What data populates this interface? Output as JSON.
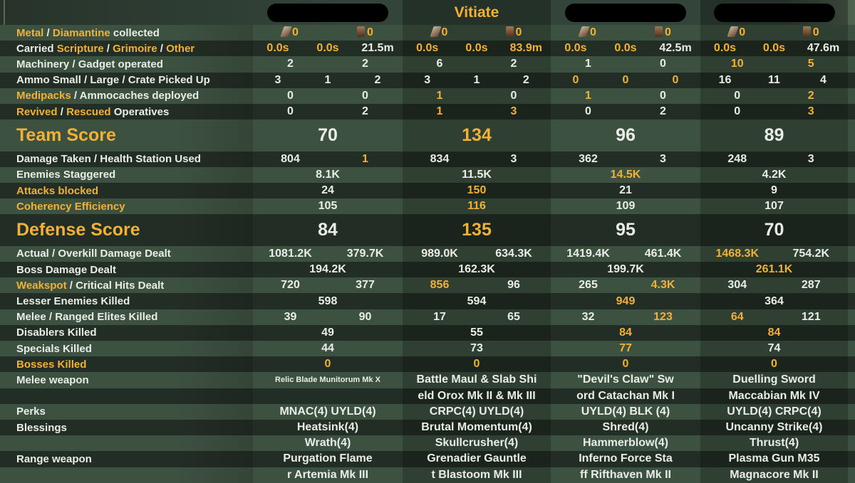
{
  "header": {
    "players": [
      "",
      "Vitiate",
      "",
      ""
    ],
    "redacted": [
      true,
      false,
      true,
      true
    ]
  },
  "colors": {
    "highlight": "#f2b136",
    "text": "#e9ede6",
    "row_light": "#3d5141",
    "row_dark": "#222d25"
  },
  "rows": [
    {
      "label": [
        {
          "t": "Metal",
          "h": 1
        },
        {
          "t": " / ",
          "h": 0
        },
        {
          "t": "Diamantine",
          "h": 1
        },
        {
          "t": " collected",
          "h": 0
        }
      ],
      "cells": [
        [
          {
            "t": "0",
            "h": 1,
            "icon": "metal"
          },
          {
            "t": "0",
            "h": 1,
            "icon": "diamantine"
          }
        ],
        [
          {
            "t": "0",
            "h": 1,
            "icon": "metal"
          },
          {
            "t": "0",
            "h": 1,
            "icon": "diamantine"
          }
        ],
        [
          {
            "t": "0",
            "h": 1,
            "icon": "metal"
          },
          {
            "t": "0",
            "h": 1,
            "icon": "diamantine"
          }
        ],
        [
          {
            "t": "0",
            "h": 1,
            "icon": "metal"
          },
          {
            "t": "0",
            "h": 1,
            "icon": "diamantine"
          }
        ]
      ]
    },
    {
      "label": [
        {
          "t": "Carried ",
          "h": 0
        },
        {
          "t": "Scripture",
          "h": 1
        },
        {
          "t": " / ",
          "h": 0
        },
        {
          "t": "Grimoire",
          "h": 1
        },
        {
          "t": " / ",
          "h": 0
        },
        {
          "t": "Other",
          "h": 1
        }
      ],
      "cells": [
        [
          {
            "t": "0.0s",
            "h": 1
          },
          {
            "t": "0.0s",
            "h": 1
          },
          {
            "t": "21.5m",
            "h": 0
          }
        ],
        [
          {
            "t": "0.0s",
            "h": 1
          },
          {
            "t": "0.0s",
            "h": 1
          },
          {
            "t": "83.9m",
            "h": 1
          }
        ],
        [
          {
            "t": "0.0s",
            "h": 1
          },
          {
            "t": "0.0s",
            "h": 1
          },
          {
            "t": "42.5m",
            "h": 0
          }
        ],
        [
          {
            "t": "0.0s",
            "h": 1
          },
          {
            "t": "0.0s",
            "h": 1
          },
          {
            "t": "47.6m",
            "h": 0
          }
        ]
      ]
    },
    {
      "label": [
        {
          "t": "Machinery / Gadget operated",
          "h": 0
        }
      ],
      "cells": [
        [
          {
            "t": "2",
            "h": 0
          },
          {
            "t": "2",
            "h": 0
          }
        ],
        [
          {
            "t": "6",
            "h": 0
          },
          {
            "t": "2",
            "h": 0
          }
        ],
        [
          {
            "t": "1",
            "h": 0
          },
          {
            "t": "0",
            "h": 0
          }
        ],
        [
          {
            "t": "10",
            "h": 1
          },
          {
            "t": "5",
            "h": 1
          }
        ]
      ]
    },
    {
      "label": [
        {
          "t": "Ammo Small / Large / Crate Picked Up",
          "h": 0
        }
      ],
      "cells": [
        [
          {
            "t": "3",
            "h": 0
          },
          {
            "t": "1",
            "h": 0
          },
          {
            "t": "2",
            "h": 0
          }
        ],
        [
          {
            "t": "3",
            "h": 0
          },
          {
            "t": "1",
            "h": 0
          },
          {
            "t": "2",
            "h": 0
          }
        ],
        [
          {
            "t": "0",
            "h": 1
          },
          {
            "t": "0",
            "h": 1
          },
          {
            "t": "0",
            "h": 1
          }
        ],
        [
          {
            "t": "16",
            "h": 0
          },
          {
            "t": "11",
            "h": 0
          },
          {
            "t": "4",
            "h": 0
          }
        ]
      ]
    },
    {
      "label": [
        {
          "t": "Medipacks",
          "h": 1
        },
        {
          "t": " / Ammocaches deployed",
          "h": 0
        }
      ],
      "cells": [
        [
          {
            "t": "0",
            "h": 0
          },
          {
            "t": "0",
            "h": 0
          }
        ],
        [
          {
            "t": "1",
            "h": 1
          },
          {
            "t": "0",
            "h": 0
          }
        ],
        [
          {
            "t": "1",
            "h": 1
          },
          {
            "t": "0",
            "h": 0
          }
        ],
        [
          {
            "t": "0",
            "h": 0
          },
          {
            "t": "2",
            "h": 1
          }
        ]
      ]
    },
    {
      "label": [
        {
          "t": "Revived",
          "h": 1
        },
        {
          "t": " / ",
          "h": 0
        },
        {
          "t": "Rescued",
          "h": 1
        },
        {
          "t": " Operatives",
          "h": 0
        }
      ],
      "cells": [
        [
          {
            "t": "0",
            "h": 0
          },
          {
            "t": "2",
            "h": 0
          }
        ],
        [
          {
            "t": "1",
            "h": 1
          },
          {
            "t": "3",
            "h": 1
          }
        ],
        [
          {
            "t": "0",
            "h": 0
          },
          {
            "t": "2",
            "h": 0
          }
        ],
        [
          {
            "t": "0",
            "h": 0
          },
          {
            "t": "3",
            "h": 1
          }
        ]
      ]
    },
    {
      "score": true,
      "label": [
        {
          "t": "Team Score",
          "h": 1
        }
      ],
      "cells": [
        [
          {
            "t": "70",
            "h": 0
          }
        ],
        [
          {
            "t": "134",
            "h": 1
          }
        ],
        [
          {
            "t": "96",
            "h": 0
          }
        ],
        [
          {
            "t": "89",
            "h": 0
          }
        ]
      ]
    },
    {
      "label": [
        {
          "t": "Damage Taken / Health Station Used",
          "h": 0
        }
      ],
      "cells": [
        [
          {
            "t": "804",
            "h": 0
          },
          {
            "t": "1",
            "h": 1
          }
        ],
        [
          {
            "t": "834",
            "h": 0
          },
          {
            "t": "3",
            "h": 0
          }
        ],
        [
          {
            "t": "362",
            "h": 0
          },
          {
            "t": "3",
            "h": 0
          }
        ],
        [
          {
            "t": "248",
            "h": 0
          },
          {
            "t": "3",
            "h": 0
          }
        ]
      ]
    },
    {
      "label": [
        {
          "t": "Enemies Staggered",
          "h": 0
        }
      ],
      "cells": [
        [
          {
            "t": "8.1K",
            "h": 0
          }
        ],
        [
          {
            "t": "11.5K",
            "h": 0
          }
        ],
        [
          {
            "t": "14.5K",
            "h": 1
          }
        ],
        [
          {
            "t": "4.2K",
            "h": 0
          }
        ]
      ]
    },
    {
      "label": [
        {
          "t": "Attacks blocked",
          "h": 1
        }
      ],
      "cells": [
        [
          {
            "t": "24",
            "h": 0
          }
        ],
        [
          {
            "t": "150",
            "h": 1
          }
        ],
        [
          {
            "t": "21",
            "h": 0
          }
        ],
        [
          {
            "t": "9",
            "h": 0
          }
        ]
      ]
    },
    {
      "label": [
        {
          "t": "Coherency Efficiency",
          "h": 1
        }
      ],
      "cells": [
        [
          {
            "t": "105",
            "h": 0
          }
        ],
        [
          {
            "t": "116",
            "h": 1
          }
        ],
        [
          {
            "t": "109",
            "h": 0
          }
        ],
        [
          {
            "t": "107",
            "h": 0
          }
        ]
      ]
    },
    {
      "score": true,
      "label": [
        {
          "t": "Defense Score",
          "h": 1
        }
      ],
      "cells": [
        [
          {
            "t": "84",
            "h": 0
          }
        ],
        [
          {
            "t": "135",
            "h": 1
          }
        ],
        [
          {
            "t": "95",
            "h": 0
          }
        ],
        [
          {
            "t": "70",
            "h": 0
          }
        ]
      ]
    },
    {
      "label": [
        {
          "t": "Actual / Overkill Damage Dealt",
          "h": 0
        }
      ],
      "cells": [
        [
          {
            "t": "1081.2K",
            "h": 0
          },
          {
            "t": "379.7K",
            "h": 0
          }
        ],
        [
          {
            "t": "989.0K",
            "h": 0
          },
          {
            "t": "634.3K",
            "h": 0
          }
        ],
        [
          {
            "t": "1419.4K",
            "h": 0
          },
          {
            "t": "461.4K",
            "h": 0
          }
        ],
        [
          {
            "t": "1468.3K",
            "h": 1
          },
          {
            "t": "754.2K",
            "h": 0
          }
        ]
      ]
    },
    {
      "label": [
        {
          "t": "Boss Damage Dealt",
          "h": 0
        }
      ],
      "cells": [
        [
          {
            "t": "194.2K",
            "h": 0
          }
        ],
        [
          {
            "t": "162.3K",
            "h": 0
          }
        ],
        [
          {
            "t": "199.7K",
            "h": 0
          }
        ],
        [
          {
            "t": "261.1K",
            "h": 1
          }
        ]
      ]
    },
    {
      "label": [
        {
          "t": "Weakspot",
          "h": 1
        },
        {
          "t": " / Critical Hits Dealt",
          "h": 0
        }
      ],
      "cells": [
        [
          {
            "t": "720",
            "h": 0
          },
          {
            "t": "377",
            "h": 0
          }
        ],
        [
          {
            "t": "856",
            "h": 1
          },
          {
            "t": "96",
            "h": 0
          }
        ],
        [
          {
            "t": "265",
            "h": 0
          },
          {
            "t": "4.3K",
            "h": 1
          }
        ],
        [
          {
            "t": "304",
            "h": 0
          },
          {
            "t": "287",
            "h": 0
          }
        ]
      ]
    },
    {
      "label": [
        {
          "t": "Lesser Enemies Killed",
          "h": 0
        }
      ],
      "cells": [
        [
          {
            "t": "598",
            "h": 0
          }
        ],
        [
          {
            "t": "594",
            "h": 0
          }
        ],
        [
          {
            "t": "949",
            "h": 1
          }
        ],
        [
          {
            "t": "364",
            "h": 0
          }
        ]
      ]
    },
    {
      "label": [
        {
          "t": "Melee / Ranged Elites Killed",
          "h": 0
        }
      ],
      "cells": [
        [
          {
            "t": "39",
            "h": 0
          },
          {
            "t": "90",
            "h": 0
          }
        ],
        [
          {
            "t": "17",
            "h": 0
          },
          {
            "t": "65",
            "h": 0
          }
        ],
        [
          {
            "t": "32",
            "h": 0
          },
          {
            "t": "123",
            "h": 1
          }
        ],
        [
          {
            "t": "64",
            "h": 1
          },
          {
            "t": "121",
            "h": 0
          }
        ]
      ]
    },
    {
      "label": [
        {
          "t": "Disablers Killed",
          "h": 0
        }
      ],
      "cells": [
        [
          {
            "t": "49",
            "h": 0
          }
        ],
        [
          {
            "t": "55",
            "h": 0
          }
        ],
        [
          {
            "t": "84",
            "h": 1
          }
        ],
        [
          {
            "t": "84",
            "h": 1
          }
        ]
      ]
    },
    {
      "label": [
        {
          "t": "Specials Killed",
          "h": 0
        }
      ],
      "cells": [
        [
          {
            "t": "44",
            "h": 0
          }
        ],
        [
          {
            "t": "73",
            "h": 0
          }
        ],
        [
          {
            "t": "77",
            "h": 1
          }
        ],
        [
          {
            "t": "74",
            "h": 0
          }
        ]
      ]
    },
    {
      "label": [
        {
          "t": "Bosses Killed",
          "h": 1
        }
      ],
      "cells": [
        [
          {
            "t": "0",
            "h": 1
          }
        ],
        [
          {
            "t": "0",
            "h": 1
          }
        ],
        [
          {
            "t": "0",
            "h": 1
          }
        ],
        [
          {
            "t": "0",
            "h": 1
          }
        ]
      ]
    },
    {
      "label": [
        {
          "t": "Melee weapon",
          "h": 0
        }
      ],
      "cells": [
        [
          {
            "t": "Relic Blade Munitorum Mk X",
            "h": 0,
            "small": true
          }
        ],
        [
          {
            "t": "Battle Maul & Slab Shi",
            "h": 0
          }
        ],
        [
          {
            "t": "\"Devil's Claw\" Sw",
            "h": 0
          }
        ],
        [
          {
            "t": "Duelling Sword",
            "h": 0
          }
        ]
      ]
    },
    {
      "label": [],
      "cells": [
        [
          {
            "t": "",
            "h": 0
          }
        ],
        [
          {
            "t": "eld Orox Mk II & Mk III",
            "h": 0
          }
        ],
        [
          {
            "t": "ord Catachan Mk I",
            "h": 0
          }
        ],
        [
          {
            "t": "Maccabian Mk IV",
            "h": 0
          }
        ]
      ]
    },
    {
      "label": [
        {
          "t": "Perks",
          "h": 0
        }
      ],
      "cells": [
        [
          {
            "t": "MNAC(4) UYLD(4)",
            "h": 0
          }
        ],
        [
          {
            "t": "CRPC(4) UYLD(4)",
            "h": 0
          }
        ],
        [
          {
            "t": "UYLD(4) BLK (4)",
            "h": 0
          }
        ],
        [
          {
            "t": "UYLD(4) CRPC(4)",
            "h": 0
          }
        ]
      ]
    },
    {
      "label": [
        {
          "t": "Blessings",
          "h": 0
        }
      ],
      "cells": [
        [
          {
            "t": "Heatsink(4)",
            "h": 0
          }
        ],
        [
          {
            "t": "Brutal Momentum(4)",
            "h": 0
          }
        ],
        [
          {
            "t": "Shred(4)",
            "h": 0
          }
        ],
        [
          {
            "t": "Uncanny Strike(4)",
            "h": 0
          }
        ]
      ]
    },
    {
      "label": [],
      "cells": [
        [
          {
            "t": "Wrath(4)",
            "h": 0
          }
        ],
        [
          {
            "t": "Skullcrusher(4)",
            "h": 0
          }
        ],
        [
          {
            "t": "Hammerblow(4)",
            "h": 0
          }
        ],
        [
          {
            "t": "Thrust(4)",
            "h": 0
          }
        ]
      ]
    },
    {
      "label": [
        {
          "t": "Range weapon",
          "h": 0
        }
      ],
      "cells": [
        [
          {
            "t": "Purgation Flame",
            "h": 0
          }
        ],
        [
          {
            "t": "Grenadier Gauntle",
            "h": 0
          }
        ],
        [
          {
            "t": "Inferno Force Sta",
            "h": 0
          }
        ],
        [
          {
            "t": "Plasma Gun M35",
            "h": 0
          }
        ]
      ]
    },
    {
      "label": [],
      "cells": [
        [
          {
            "t": "r Artemia Mk III",
            "h": 0
          }
        ],
        [
          {
            "t": "t Blastoom Mk III",
            "h": 0
          }
        ],
        [
          {
            "t": "ff Rifthaven Mk II",
            "h": 0
          }
        ],
        [
          {
            "t": "Magnacore Mk II",
            "h": 0
          }
        ]
      ]
    }
  ]
}
